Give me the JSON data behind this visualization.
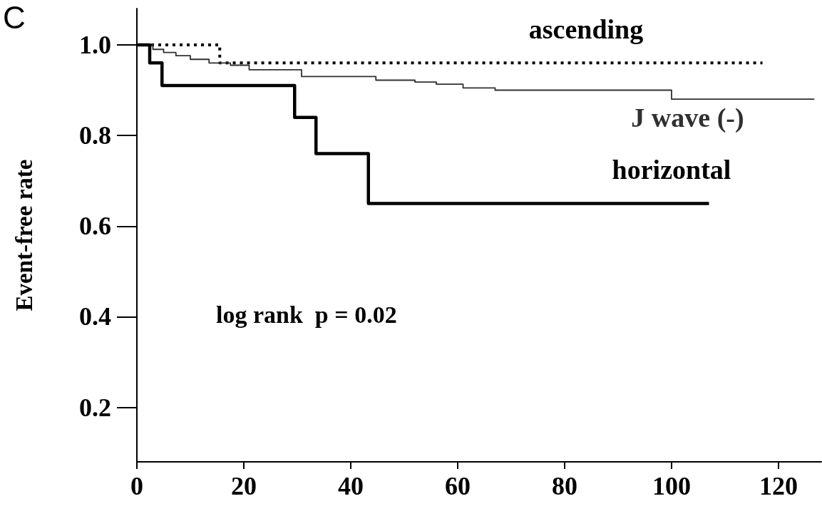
{
  "chart_data": {
    "type": "step",
    "ylabel": "Event-free rate",
    "annotations": [
      "C",
      "log rank  p = 0.02"
    ],
    "xlim": [
      0,
      128
    ],
    "xticks": [
      0,
      20,
      40,
      60,
      80,
      100,
      120
    ],
    "ylim": [
      0.08,
      1.08
    ],
    "yticks": [
      0.2,
      0.4,
      0.6,
      0.8,
      {
        "value": 1,
        "label": "1.0"
      }
    ],
    "grid": false,
    "legend": false,
    "marker": "none",
    "series": [
      {
        "name": "ascending",
        "color": "#000000",
        "line_style": "dotted",
        "x": [
          0,
          15.5,
          117
        ],
        "values": [
          1.0,
          0.96,
          0.96
        ]
      },
      {
        "name": "J wave (-)",
        "color": "#303030",
        "line_style": "solid",
        "x": [
          0,
          3,
          5,
          7.3,
          10,
          13.5,
          17.5,
          21,
          30.8,
          44.7,
          52,
          56,
          61,
          67,
          100,
          126.7
        ],
        "values": [
          1.0,
          0.99,
          0.983,
          0.976,
          0.968,
          0.96,
          0.955,
          0.945,
          0.93,
          0.922,
          0.918,
          0.913,
          0.905,
          0.9,
          0.88,
          0.88
        ]
      },
      {
        "name": "horizontal",
        "color": "#000000",
        "line_style": "solid",
        "x": [
          0,
          2.4,
          4.7,
          29.5,
          33.5,
          43.3,
          107
        ],
        "values": [
          1.0,
          0.96,
          0.91,
          0.84,
          0.76,
          0.65,
          0.65
        ]
      }
    ]
  }
}
